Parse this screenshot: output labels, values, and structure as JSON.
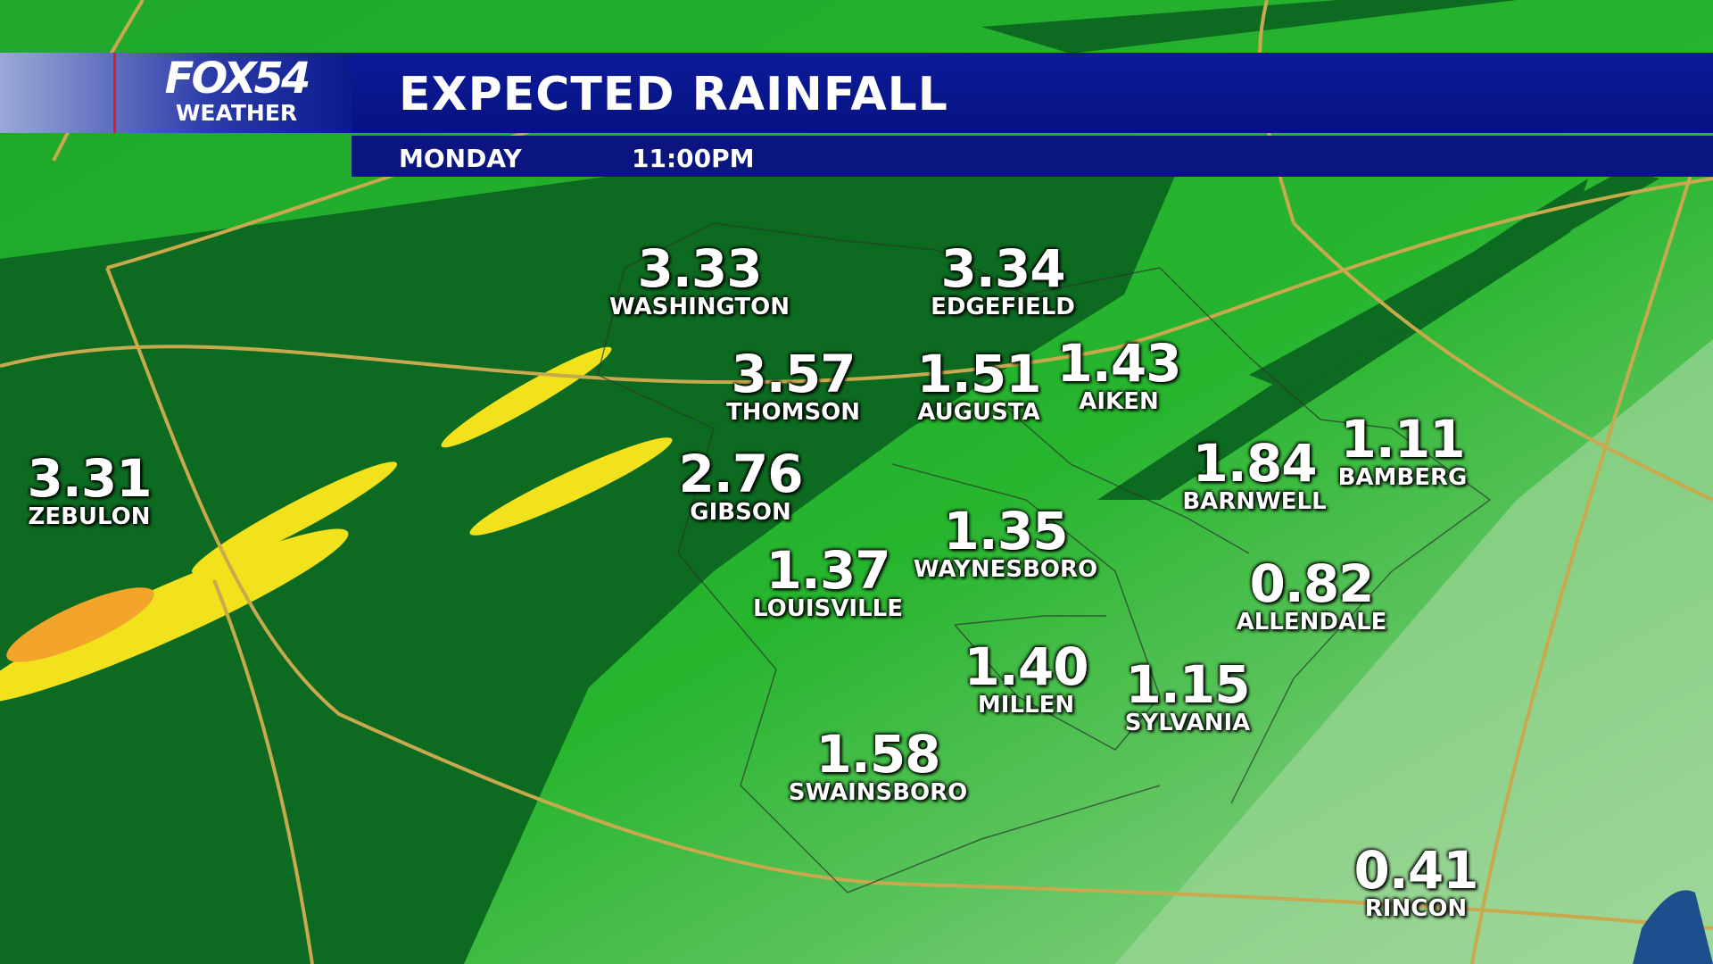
{
  "header": {
    "brand": "FOX54",
    "brand_sub": "WEATHER",
    "title": "EXPECTED RAINFALL",
    "day": "MONDAY",
    "time": "11:00PM"
  },
  "locations": [
    {
      "name": "WASHINGTON",
      "value": "3.33"
    },
    {
      "name": "EDGEFIELD",
      "value": "3.34"
    },
    {
      "name": "THOMSON",
      "value": "3.57"
    },
    {
      "name": "AUGUSTA",
      "value": "1.51"
    },
    {
      "name": "AIKEN",
      "value": "1.43"
    },
    {
      "name": "ZEBULON",
      "value": "3.31"
    },
    {
      "name": "GIBSON",
      "value": "2.76"
    },
    {
      "name": "BARNWELL",
      "value": "1.84"
    },
    {
      "name": "BAMBERG",
      "value": "1.11"
    },
    {
      "name": "WAYNESBORO",
      "value": "1.35"
    },
    {
      "name": "LOUISVILLE",
      "value": "1.37"
    },
    {
      "name": "ALLENDALE",
      "value": "0.82"
    },
    {
      "name": "MILLEN",
      "value": "1.40"
    },
    {
      "name": "SYLVANIA",
      "value": "1.15"
    },
    {
      "name": "SWAINSBORO",
      "value": "1.58"
    },
    {
      "name": "RINCON",
      "value": "0.41"
    }
  ]
}
